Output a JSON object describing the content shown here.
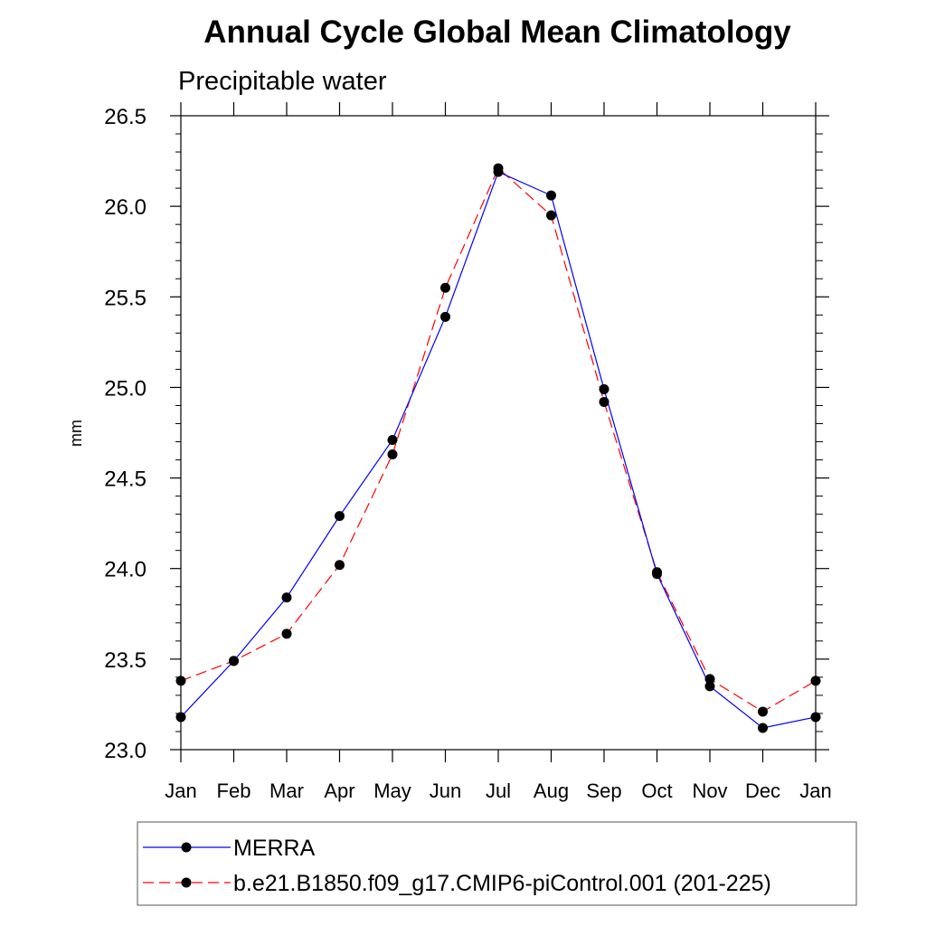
{
  "chart_data": {
    "type": "line",
    "title": "Annual Cycle Global Mean Climatology",
    "subtitle": "Precipitable water",
    "xlabel": "",
    "ylabel": "mm",
    "categories": [
      "Jan",
      "Feb",
      "Mar",
      "Apr",
      "May",
      "Jun",
      "Jul",
      "Aug",
      "Sep",
      "Oct",
      "Nov",
      "Dec",
      "Jan"
    ],
    "ylim": [
      23.0,
      26.5
    ],
    "yticks": [
      "23.0",
      "23.5",
      "24.0",
      "24.5",
      "25.0",
      "25.5",
      "26.0",
      "26.5"
    ],
    "yminor_step": 0.1,
    "grid": false,
    "legend_position": "bottom",
    "series": [
      {
        "name": "MERRA",
        "color": "#0000ff",
        "dash": "solid",
        "values": [
          23.18,
          23.49,
          23.84,
          24.29,
          24.71,
          25.39,
          26.19,
          26.06,
          24.99,
          23.97,
          23.35,
          23.12,
          23.18
        ]
      },
      {
        "name": "b.e21.B1850.f09_g17.CMIP6-piControl.001 (201-225)",
        "color": "#ff0000",
        "dash": "dashed",
        "values": [
          23.38,
          23.49,
          23.64,
          24.02,
          24.63,
          25.55,
          26.21,
          25.95,
          24.92,
          23.98,
          23.39,
          23.21,
          23.38
        ]
      }
    ],
    "marker_color": "#000000"
  }
}
